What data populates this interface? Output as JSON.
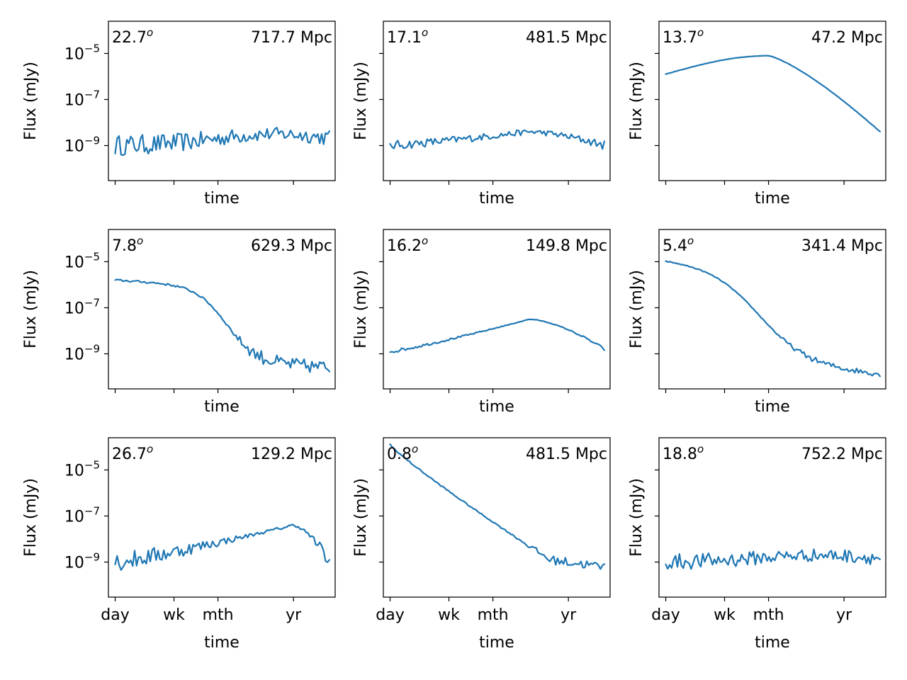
{
  "chart_data": {
    "type": "line",
    "layout": {
      "rows": 3,
      "cols": 3,
      "shared_x": true,
      "shared_y": true
    },
    "color": "#1f77b4",
    "xlabel": "time",
    "ylabel": "Flux (mJy)",
    "x_scale": "log",
    "y_scale": "log",
    "x_ticks": [
      {
        "label": "day",
        "value": 1
      },
      {
        "label": "wk",
        "value": 7
      },
      {
        "label": "mth",
        "value": 30
      },
      {
        "label": "yr",
        "value": 365
      }
    ],
    "x_range_days": [
      0.8,
      1450
    ],
    "y_ticks": [
      {
        "base": "10",
        "exp": "−5",
        "value": 1e-05
      },
      {
        "base": "10",
        "exp": "−7",
        "value": 1e-07
      },
      {
        "base": "10",
        "exp": "−9",
        "value": 1e-09
      }
    ],
    "y_range": [
      3e-11,
      0.00025
    ],
    "panels": [
      {
        "angle": "22.7",
        "angle_unit": "o",
        "distance": "717.7 Mpc",
        "shape": "flat",
        "peak_day": 200,
        "peak_log": -8.5,
        "start_log": -9.0,
        "noise": 0.45
      },
      {
        "angle": "17.1",
        "angle_unit": "o",
        "distance": "481.5 Mpc",
        "shape": "hump",
        "peak_day": 100,
        "peak_log": -8.4,
        "start_log": -9.0,
        "noise": 0.2
      },
      {
        "angle": "13.7",
        "angle_unit": "o",
        "distance": "47.2 Mpc",
        "shape": "smooth-hump",
        "peak_day": 30,
        "peak_log": -5.1,
        "start_log": -5.9,
        "end_log": -8.4,
        "noise": 0.03
      },
      {
        "angle": "7.8",
        "angle_unit": "o",
        "distance": "629.3 Mpc",
        "shape": "decline",
        "start_log": -5.8,
        "end_log": -9.6,
        "noise": 0.3
      },
      {
        "angle": "16.2",
        "angle_unit": "o",
        "distance": "149.8 Mpc",
        "shape": "hump",
        "peak_day": 100,
        "peak_log": -7.5,
        "start_log": -8.9,
        "end_log": -8.8,
        "noise": 0.08
      },
      {
        "angle": "5.4",
        "angle_unit": "o",
        "distance": "341.4 Mpc",
        "shape": "steep-decline",
        "start_log": -4.9,
        "end_log": -9.9,
        "noise": 0.12
      },
      {
        "angle": "26.7",
        "angle_unit": "o",
        "distance": "129.2 Mpc",
        "shape": "hump",
        "peak_day": 365,
        "peak_log": -7.4,
        "start_log": -9.0,
        "noise": 0.45
      },
      {
        "angle": "0.8",
        "angle_unit": "o",
        "distance": "481.5 Mpc",
        "shape": "powerlaw",
        "start_log": -3.9,
        "end_log": -9.2,
        "noise": 0.2
      },
      {
        "angle": "18.8",
        "angle_unit": "o",
        "distance": "752.2 Mpc",
        "shape": "flat",
        "peak_day": 150,
        "peak_log": -8.7,
        "start_log": -9.0,
        "noise": 0.35
      }
    ]
  }
}
